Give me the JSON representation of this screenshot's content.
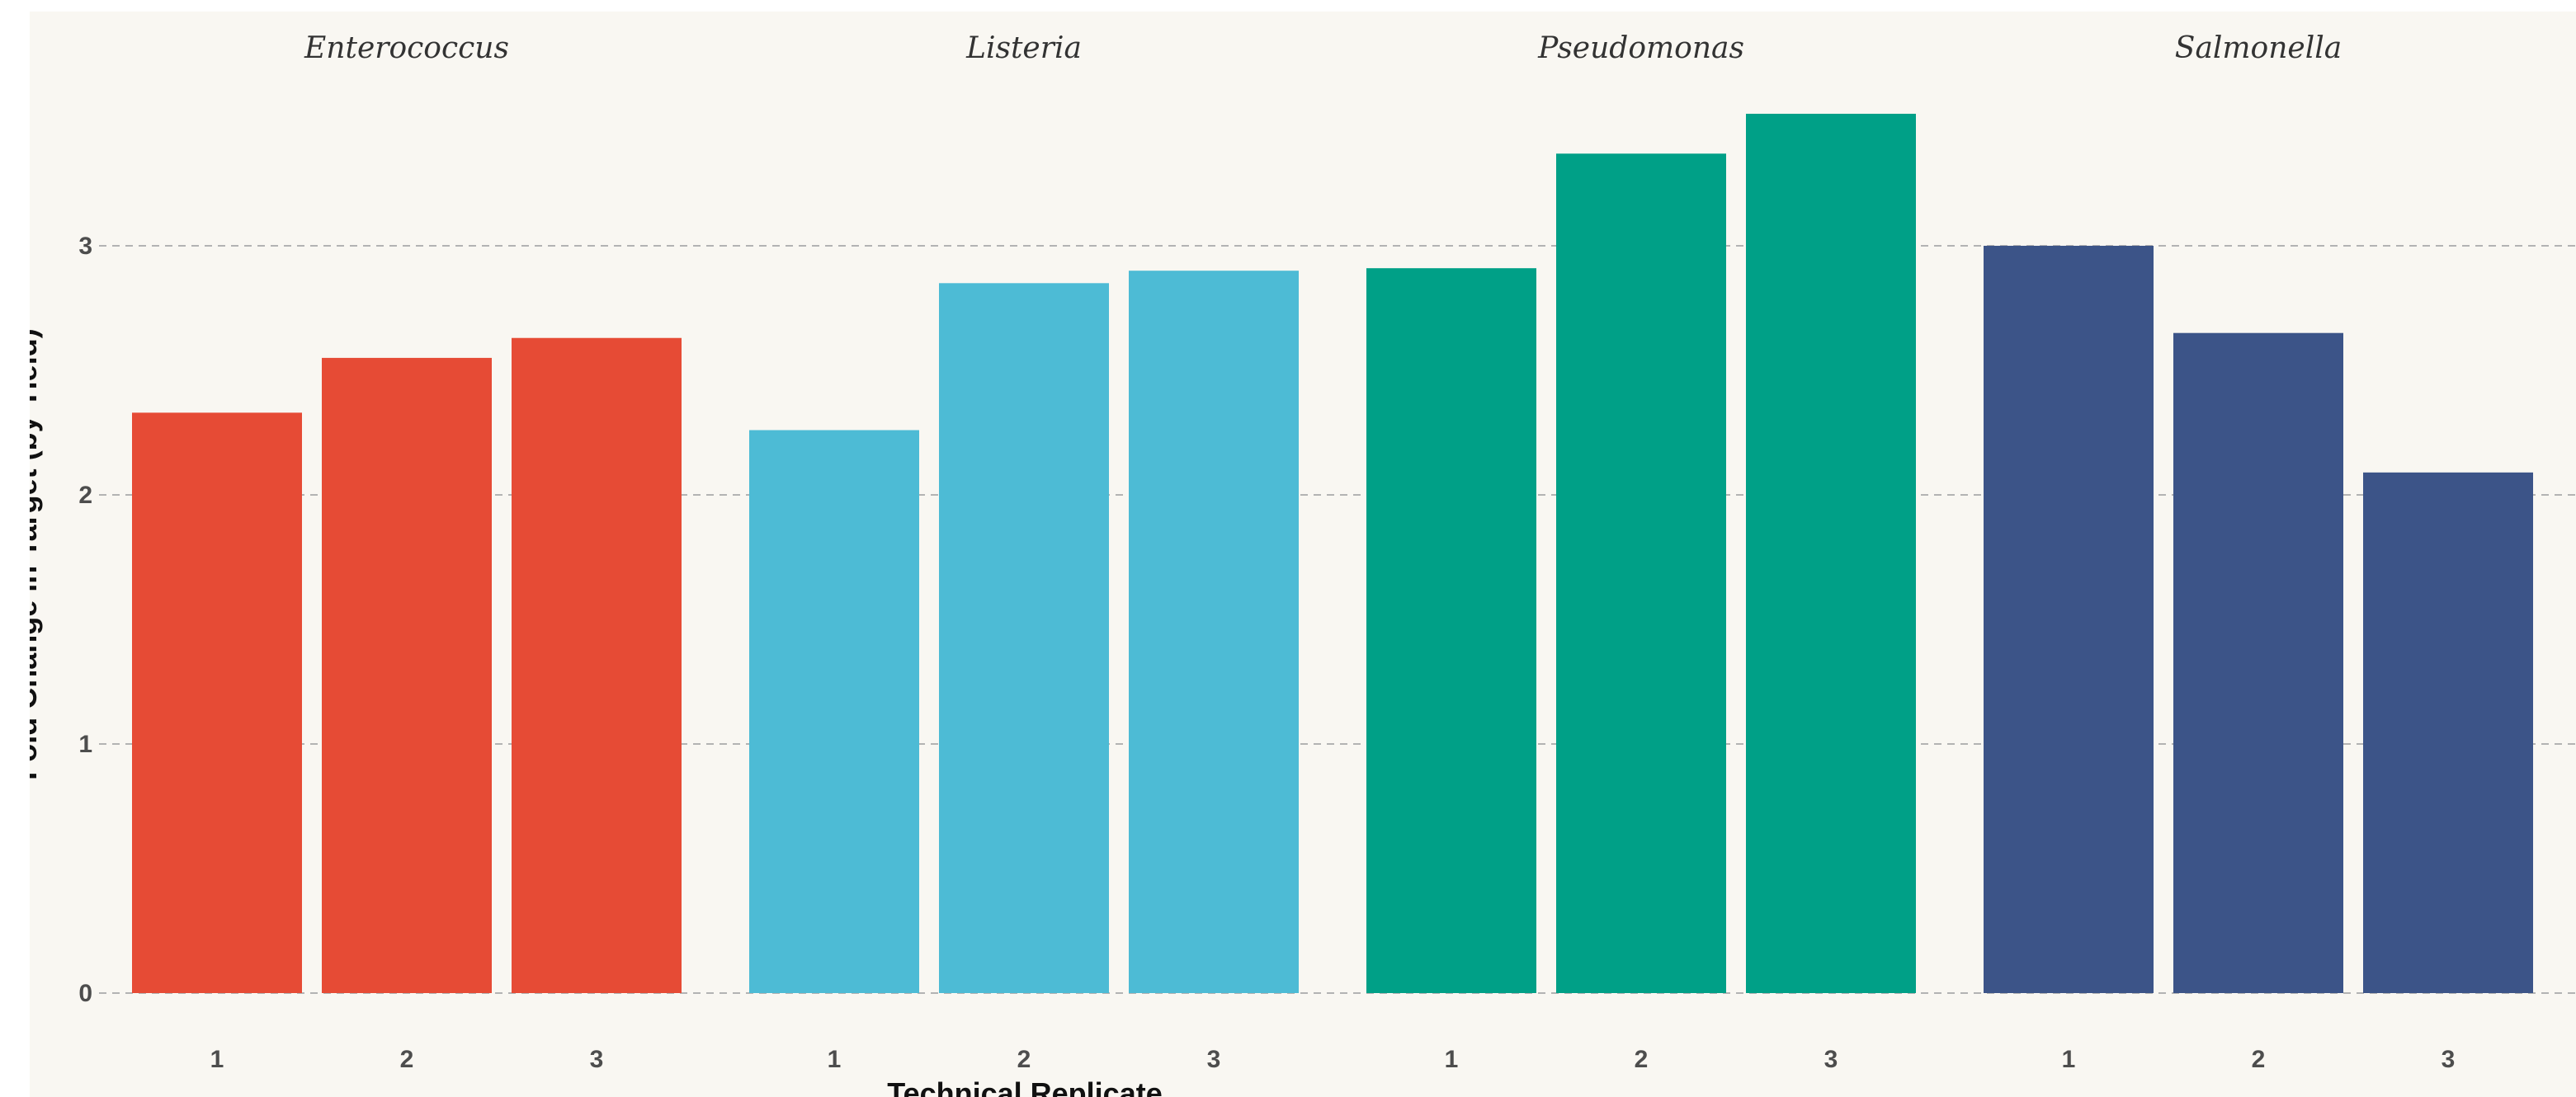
{
  "chart_data": {
    "type": "bar",
    "facets": [
      {
        "label": "Enterococcus",
        "color": "#e64b35"
      },
      {
        "label": "Listeria",
        "color": "#4dbbd5"
      },
      {
        "label": "Pseudomonas",
        "color": "#00a087"
      },
      {
        "label": "Salmonella",
        "color": "#3c5488"
      }
    ],
    "categories": [
      "1",
      "2",
      "3"
    ],
    "series": [
      {
        "values": [
          2.33,
          2.55,
          2.63
        ]
      },
      {
        "values": [
          2.26,
          2.85,
          2.9
        ]
      },
      {
        "values": [
          2.91,
          3.37,
          3.53
        ]
      },
      {
        "values": [
          3.0,
          2.65,
          2.09
        ]
      }
    ],
    "xlabel": "Technical Replicate",
    "ylabel": "Fold Change in Target (by Yield)",
    "ylim": [
      0,
      3.6
    ],
    "yticks": [
      "0",
      "1",
      "2",
      "3"
    ],
    "grid": "horizontal dashed",
    "background": "#f9f7f2"
  }
}
